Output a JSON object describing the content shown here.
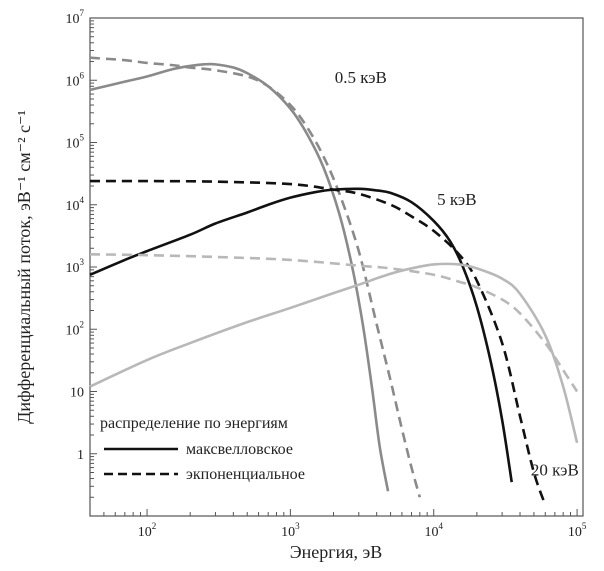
{
  "chart_data": {
    "type": "line",
    "title": "",
    "xlabel": "Энергия, эВ",
    "ylabel": "Дифференциальный поток, эВ⁻¹ см⁻² с⁻¹",
    "x_scale": "log",
    "y_scale": "log",
    "xlim": [
      40,
      110000
    ],
    "ylim": [
      0.1,
      10000000
    ],
    "x_ticks": [
      {
        "value": 100,
        "base": "10",
        "exp": "2"
      },
      {
        "value": 1000,
        "base": "10",
        "exp": "3"
      },
      {
        "value": 10000,
        "base": "10",
        "exp": "4"
      },
      {
        "value": 100000,
        "base": "10",
        "exp": "5"
      }
    ],
    "y_ticks": [
      {
        "value": 1,
        "base": "1",
        "exp": ""
      },
      {
        "value": 10,
        "base": "10",
        "exp": ""
      },
      {
        "value": 100,
        "base": "10",
        "exp": "2"
      },
      {
        "value": 1000,
        "base": "10",
        "exp": "3"
      },
      {
        "value": 10000,
        "base": "10",
        "exp": "4"
      },
      {
        "value": 100000,
        "base": "10",
        "exp": "5"
      },
      {
        "value": 1000000,
        "base": "10",
        "exp": "6"
      },
      {
        "value": 10000000,
        "base": "10",
        "exp": "7"
      }
    ],
    "grid": false,
    "series": [
      {
        "group": "0.5 кэВ",
        "kind": "максвелловское",
        "color": "#8a8a8a",
        "dash": false,
        "x": [
          40,
          70,
          100,
          150,
          200,
          250,
          300,
          400,
          500,
          700,
          1000,
          1300,
          1700,
          2200,
          2700,
          3200,
          3700,
          4200,
          4800
        ],
        "y": [
          700000,
          950000,
          1150000,
          1500000,
          1700000,
          1800000,
          1800000,
          1600000,
          1300000,
          800000,
          350000,
          140000,
          40000,
          7000,
          1000,
          120,
          12,
          1.3,
          0.25
        ]
      },
      {
        "group": "0.5 кэВ",
        "kind": "экпоненциальное",
        "color": "#8a8a8a",
        "dash": true,
        "x": [
          40,
          70,
          100,
          150,
          200,
          300,
          500,
          700,
          1000,
          1300,
          1700,
          2200,
          3000,
          4000,
          5000,
          6000,
          7000,
          8000
        ],
        "y": [
          2300000,
          2100000,
          1900000,
          1750000,
          1600000,
          1450000,
          1150000,
          800000,
          400000,
          180000,
          60000,
          15000,
          1800,
          120,
          15,
          2.5,
          0.6,
          0.2
        ]
      },
      {
        "group": "5 кэВ",
        "kind": "максвелловское",
        "color": "#111111",
        "dash": false,
        "x": [
          40,
          70,
          100,
          200,
          300,
          500,
          700,
          1000,
          1500,
          2000,
          3000,
          4000,
          5000,
          7000,
          10000,
          13000,
          16000,
          20000,
          25000,
          30000,
          35000
        ],
        "y": [
          750,
          1300,
          1800,
          3300,
          5000,
          7500,
          10000,
          13000,
          16000,
          17500,
          18000,
          17000,
          15500,
          11000,
          5500,
          2600,
          1000,
          230,
          30,
          3.5,
          0.35
        ]
      },
      {
        "group": "5 кэВ",
        "kind": "экпоненциальное",
        "color": "#111111",
        "dash": true,
        "x": [
          40,
          100,
          300,
          1000,
          2000,
          3000,
          5000,
          7000,
          10000,
          15000,
          20000,
          30000,
          40000,
          50000,
          60000
        ],
        "y": [
          24000,
          24000,
          23500,
          21500,
          17500,
          15000,
          10000,
          6500,
          3800,
          1600,
          600,
          60,
          4,
          0.5,
          0.15
        ]
      },
      {
        "group": "20 кэВ",
        "kind": "максвелловское",
        "color": "#b8b8b8",
        "dash": false,
        "x": [
          40,
          100,
          200,
          500,
          1000,
          2000,
          3000,
          5000,
          7000,
          10000,
          15000,
          20000,
          30000,
          40000,
          60000,
          80000,
          100000
        ],
        "y": [
          12,
          32,
          60,
          130,
          220,
          380,
          520,
          780,
          950,
          1100,
          1100,
          950,
          650,
          370,
          80,
          12,
          1.5
        ]
      },
      {
        "group": "20 кэВ",
        "kind": "экпоненциальное",
        "color": "#b8b8b8",
        "dash": true,
        "x": [
          40,
          100,
          300,
          1000,
          3000,
          5000,
          10000,
          15000,
          20000,
          30000,
          40000,
          60000,
          80000,
          100000
        ],
        "y": [
          1600,
          1550,
          1450,
          1300,
          1050,
          950,
          750,
          580,
          470,
          300,
          180,
          60,
          22,
          10
        ]
      }
    ],
    "annotations": [
      {
        "text": "0.5 кэВ",
        "x": 3100,
        "y": 900000
      },
      {
        "text": "5 кэВ",
        "x": 14500,
        "y": 10000
      },
      {
        "text": "20 кэВ",
        "x": 70000,
        "y": 0.45
      }
    ],
    "legend": {
      "title": "распределение по энергиям",
      "placement": "bottom-left",
      "items": [
        {
          "label": "максвелловское",
          "dash": false
        },
        {
          "label": "экпоненциальное",
          "dash": true
        }
      ]
    }
  }
}
